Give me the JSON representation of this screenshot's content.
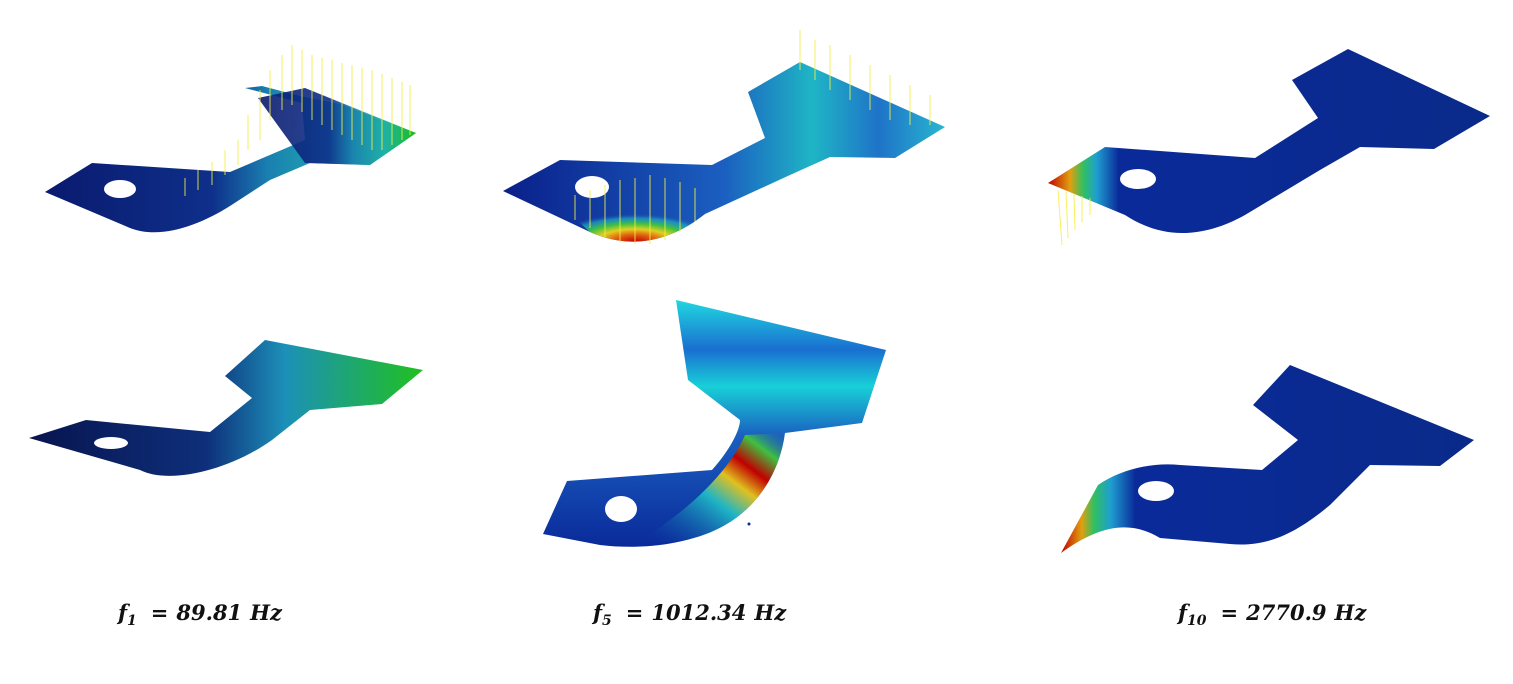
{
  "captions": [
    {
      "symbol": "f",
      "subscript": "1",
      "equals": "=",
      "value": "89.81",
      "unit": "Hz"
    },
    {
      "symbol": "f",
      "subscript": "5",
      "equals": "=",
      "value": "1012.34",
      "unit": "Hz"
    },
    {
      "symbol": "f",
      "subscript": "10",
      "equals": "=",
      "value": "2770.9",
      "unit": "Hz"
    }
  ],
  "colors": {
    "background": "#ffffff",
    "colormap_low": "#0a1a6e",
    "colormap_mid": "#1fb0c8",
    "colormap_green": "#20c020",
    "colormap_high": "#c00000",
    "arrow_vectors": "#f5f040",
    "hole": "#ffffff"
  },
  "panels": [
    {
      "mode": "1",
      "row": "top",
      "view": "undeformed-with-vectors"
    },
    {
      "mode": "5",
      "row": "top",
      "view": "undeformed-with-vectors"
    },
    {
      "mode": "10",
      "row": "top",
      "view": "undeformed-with-vectors"
    },
    {
      "mode": "1",
      "row": "bottom",
      "view": "deformed"
    },
    {
      "mode": "5",
      "row": "bottom",
      "view": "deformed"
    },
    {
      "mode": "10",
      "row": "bottom",
      "view": "deformed"
    }
  ]
}
